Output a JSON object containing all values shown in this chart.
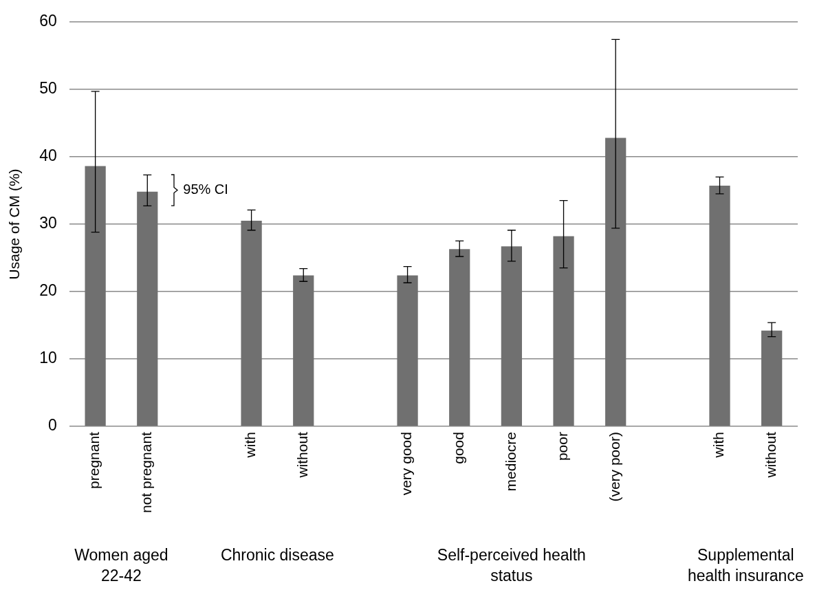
{
  "chart_data": {
    "type": "bar",
    "ylabel": "Usage of CM (%)",
    "categories": [
      "pregnant",
      "not pregnant",
      null,
      "with",
      "without",
      null,
      "very good",
      "good",
      "mediocre",
      "poor",
      "(very poor)",
      null,
      "with",
      "without"
    ],
    "values": [
      38.6,
      34.8,
      null,
      30.5,
      22.4,
      null,
      22.4,
      26.3,
      26.7,
      28.2,
      42.8,
      null,
      35.7,
      14.2
    ],
    "errors": [
      [
        28.8,
        49.7
      ],
      [
        32.7,
        37.3
      ],
      null,
      [
        29.1,
        32.1
      ],
      [
        21.5,
        23.4
      ],
      null,
      [
        21.3,
        23.7
      ],
      [
        25.2,
        27.5
      ],
      [
        24.5,
        29.1
      ],
      [
        23.5,
        33.5
      ],
      [
        29.4,
        57.4
      ],
      null,
      [
        34.5,
        37.0
      ],
      [
        13.3,
        15.4
      ]
    ],
    "color": "#707070",
    "ylim": [
      0,
      60
    ],
    "yticks": [
      0,
      10,
      20,
      30,
      40,
      50,
      60
    ],
    "grid": "y",
    "legend": false,
    "annotations": [
      {
        "text": "95% CI",
        "x": "not pregnant",
        "y": 35
      },
      "Women aged 22-42",
      "Chronic disease",
      "Self-perceived health status",
      "Supplemental health insurance"
    ]
  }
}
